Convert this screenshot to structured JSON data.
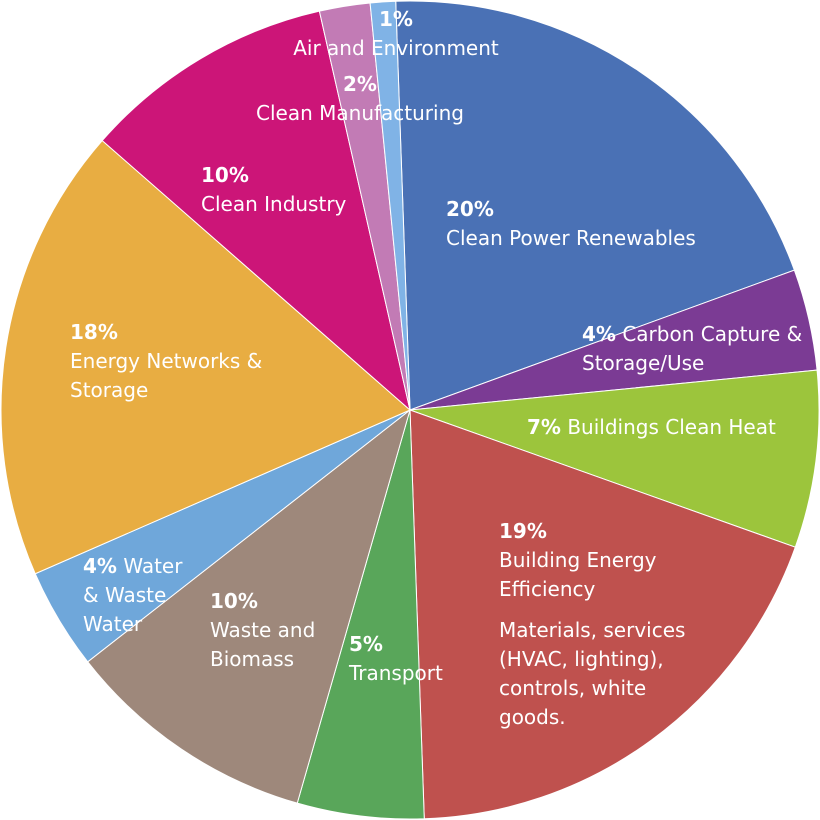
{
  "chart_data": {
    "type": "pie",
    "categories": [
      "Clean Power Renewables",
      "Carbon Capture & Storage/Use",
      "Buildings Clean Heat",
      "Building Energy Efficiency",
      "Transport",
      "Waste and Biomass",
      "Water & Waste Water",
      "Energy Networks & Storage",
      "Clean Industry",
      "Clean Manufacturing",
      "Air and Environment"
    ],
    "values": [
      20,
      4,
      7,
      19,
      5,
      10,
      4,
      18,
      10,
      2,
      1
    ],
    "value_labels": [
      "20%",
      "4%",
      "7%",
      "19%",
      "5%",
      "10%",
      "4%",
      "18%",
      "10%",
      "2%",
      "1%"
    ],
    "colors": [
      "#4a71b5",
      "#7b3b94",
      "#9cc53c",
      "#bf514e",
      "#59a65a",
      "#9e887b",
      "#6fa7da",
      "#e8ad42",
      "#cc1578",
      "#c27bb5",
      "#80b3e6"
    ],
    "descriptions": [
      null,
      null,
      null,
      "Materials, services (HVAC, lighting), controls, white goods.",
      null,
      null,
      null,
      null,
      null,
      null,
      null
    ]
  }
}
